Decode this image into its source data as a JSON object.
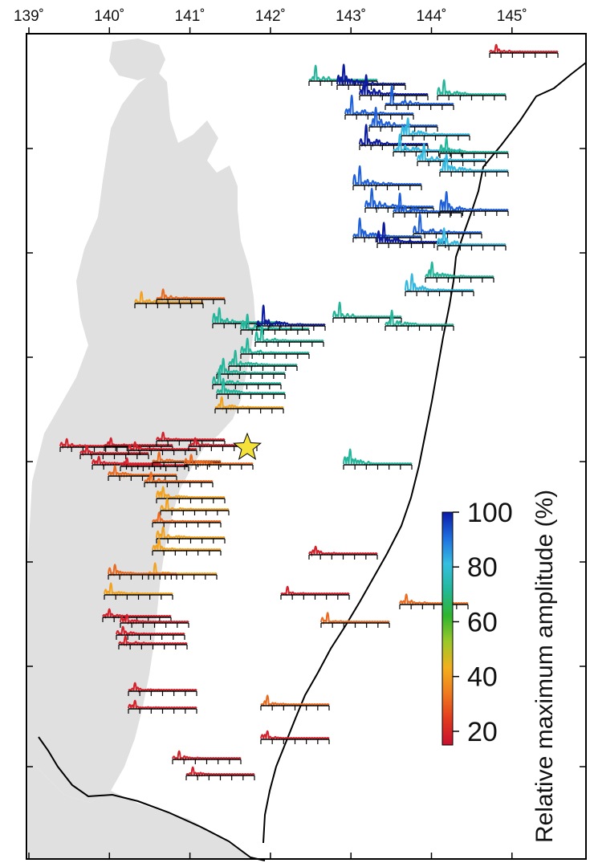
{
  "map": {
    "longitude_ticks": [
      "139˚",
      "140˚",
      "141˚",
      "142˚",
      "143˚",
      "144˚",
      "145˚"
    ],
    "longitude_values": [
      139,
      140,
      141,
      142,
      143,
      144,
      145
    ],
    "land_color": "#e0e0e0",
    "trench_line_color": "#000000",
    "epicenter_marker": "star",
    "epicenter_color": "#f4e13a"
  },
  "colorbar": {
    "title": "Relative maximum amplitude (%)",
    "ticks": [
      "100",
      "80",
      "60",
      "40",
      "20"
    ],
    "tick_values": [
      100,
      80,
      60,
      40,
      20
    ],
    "range": [
      15,
      100
    ],
    "colors": [
      "#0a1aa8",
      "#1f6fe0",
      "#36bfe0",
      "#22b89a",
      "#2fb52f",
      "#9bc82a",
      "#f2b01e",
      "#f07a1e",
      "#e23a1e",
      "#c8102e"
    ]
  },
  "stations": {
    "amplitude_classes": [
      {
        "amplitude": 18,
        "color": "#d3202a"
      },
      {
        "amplitude": 30,
        "color": "#ea6a1f"
      },
      {
        "amplitude": 40,
        "color": "#f2a21e"
      },
      {
        "amplitude": 55,
        "color": "#2fb34f"
      },
      {
        "amplitude": 65,
        "color": "#24b59a"
      },
      {
        "amplitude": 78,
        "color": "#35b8e0"
      },
      {
        "amplitude": 90,
        "color": "#1f60d8"
      },
      {
        "amplitude": 98,
        "color": "#0c1a9c"
      }
    ]
  }
}
